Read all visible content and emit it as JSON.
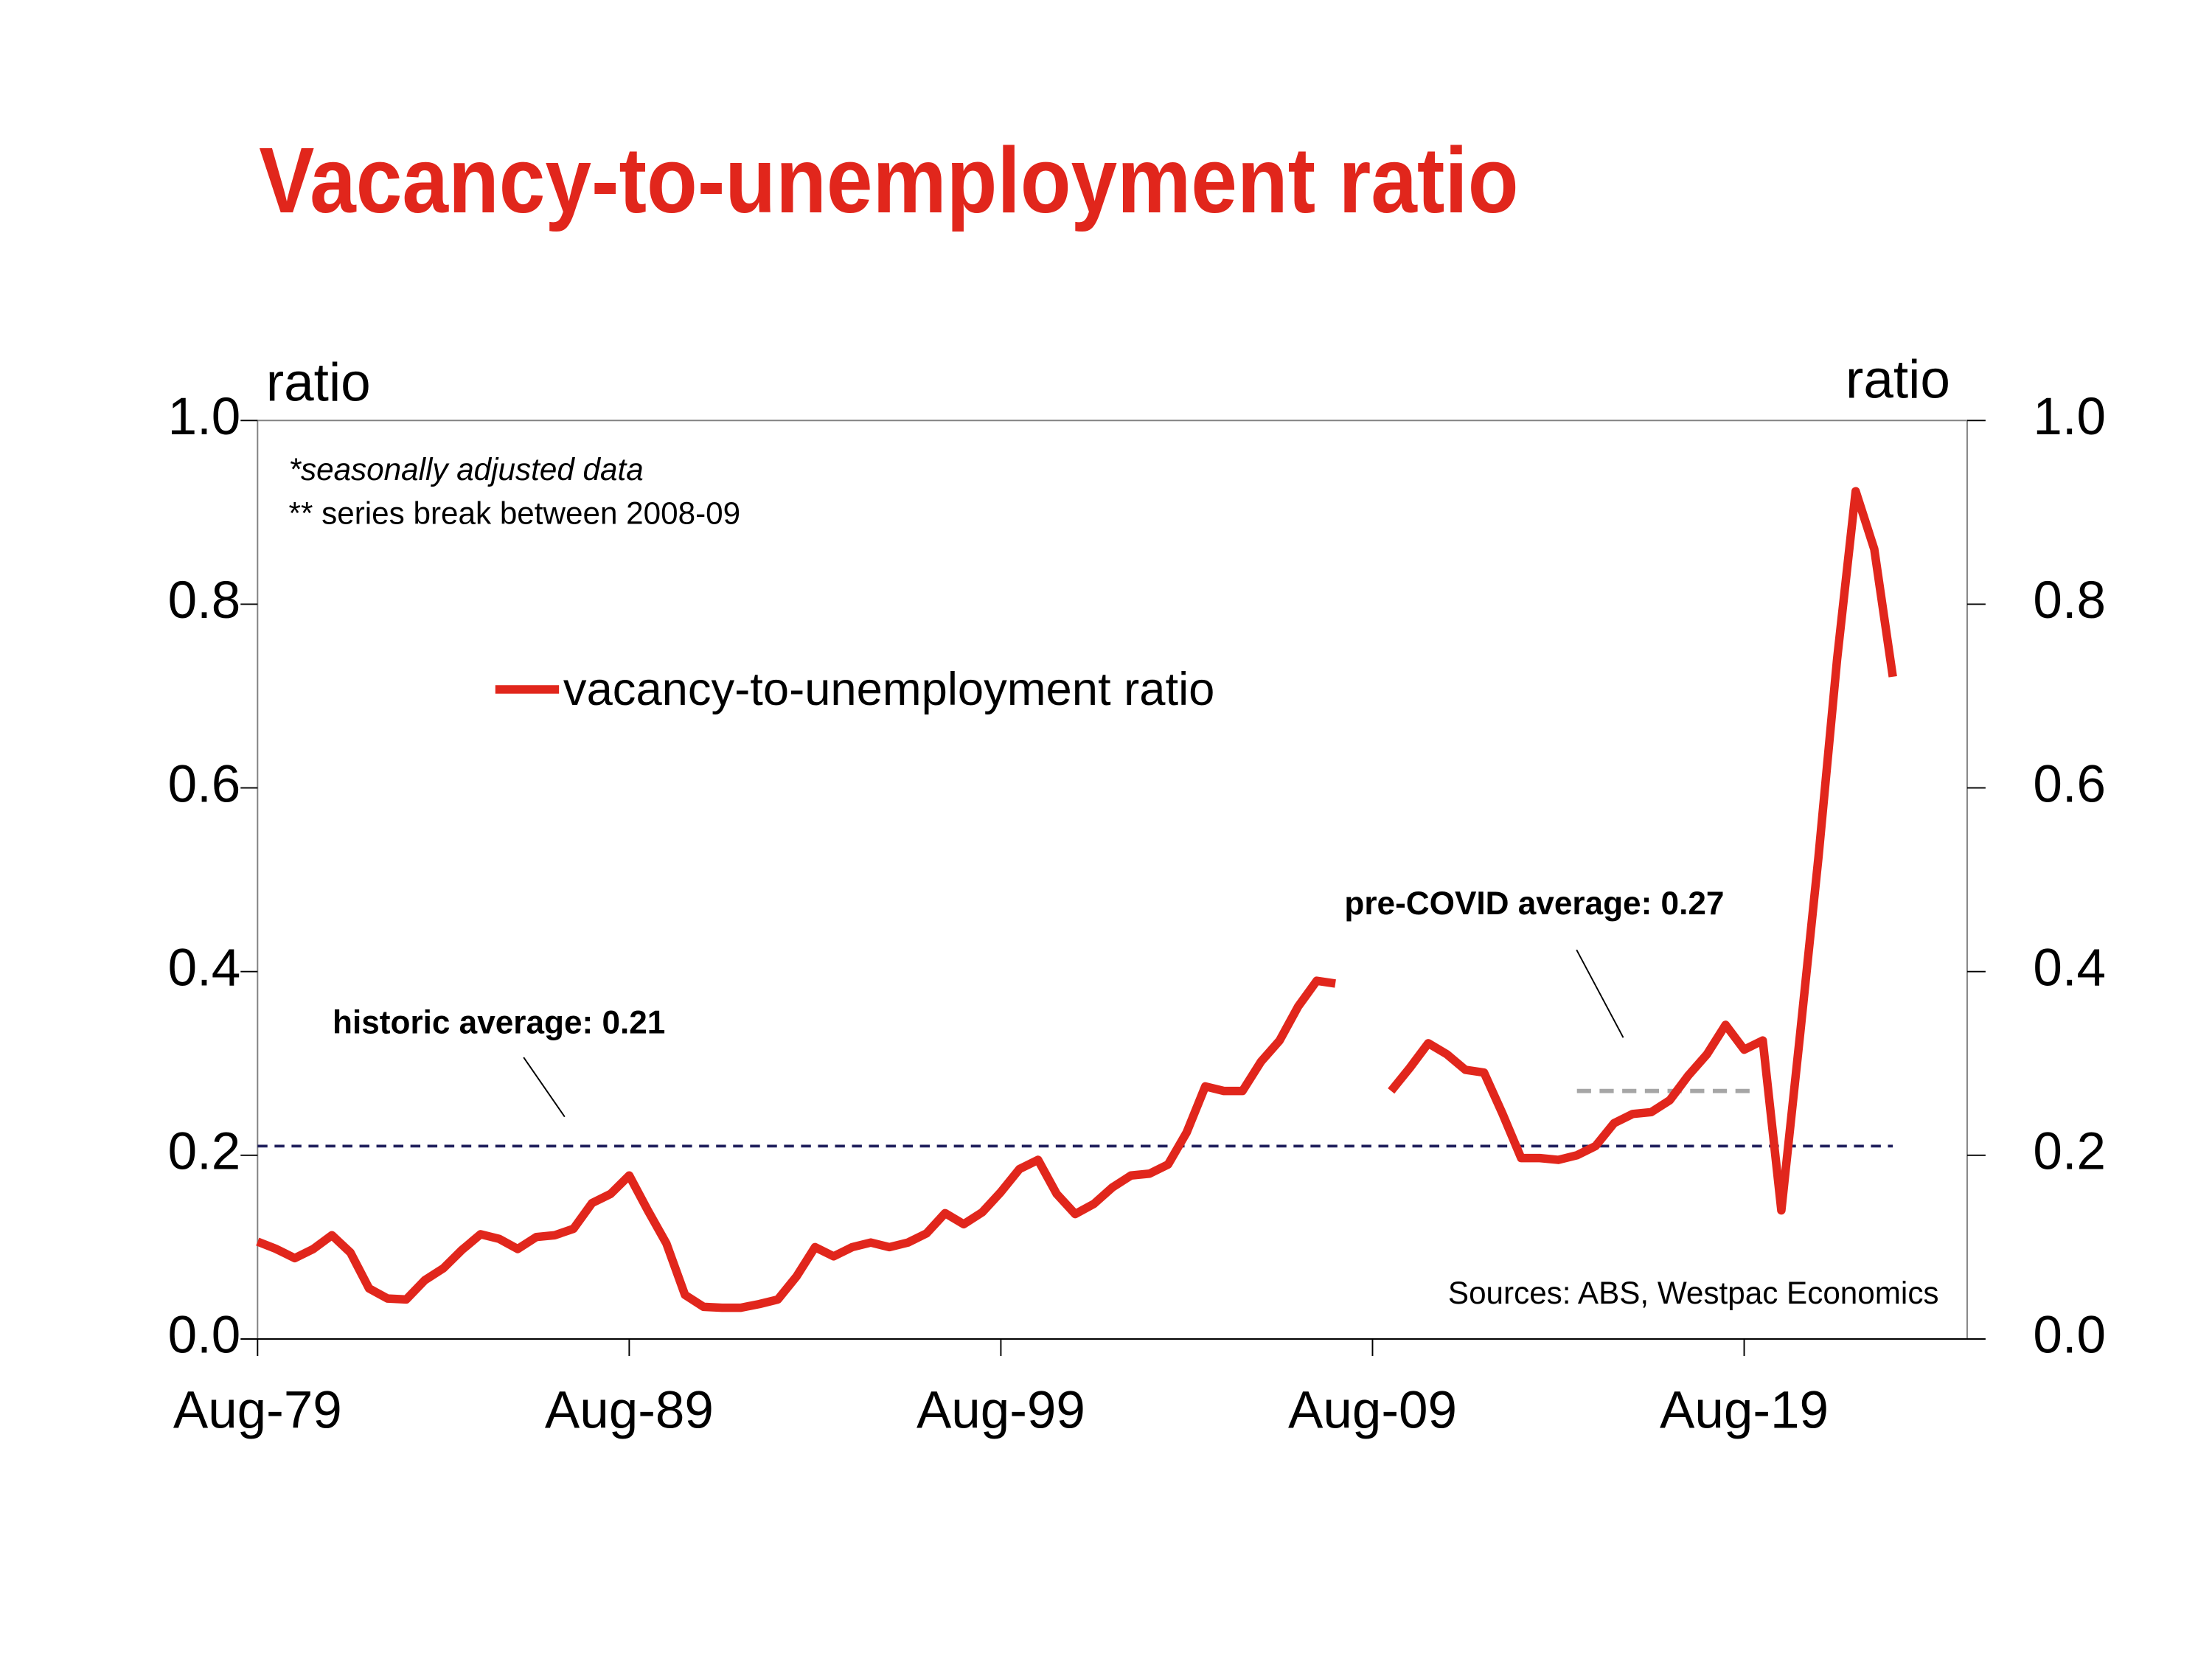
{
  "chart_data": {
    "type": "line",
    "title": "Vacancy-to-unemployment ratio",
    "ylabel": "ratio",
    "y2label": "ratio",
    "notes": [
      "*seasonally adjusted data",
      "** series break between 2008-09"
    ],
    "source": "Sources: ABS, Westpac Economics",
    "x": [
      "1979-08",
      "1980-02",
      "1980-08",
      "1981-02",
      "1981-08",
      "1982-02",
      "1982-08",
      "1983-02",
      "1983-08",
      "1984-02",
      "1984-08",
      "1985-02",
      "1985-08",
      "1986-02",
      "1986-08",
      "1987-02",
      "1987-08",
      "1988-02",
      "1988-08",
      "1989-02",
      "1989-08",
      "1990-02",
      "1990-08",
      "1991-02",
      "1991-08",
      "1992-02",
      "1992-08",
      "1993-02",
      "1993-08",
      "1994-02",
      "1994-08",
      "1995-02",
      "1995-08",
      "1996-02",
      "1996-08",
      "1997-02",
      "1997-08",
      "1998-02",
      "1998-08",
      "1999-02",
      "1999-08",
      "2000-02",
      "2000-08",
      "2001-02",
      "2001-08",
      "2002-02",
      "2002-08",
      "2003-02",
      "2003-08",
      "2004-02",
      "2004-08",
      "2005-02",
      "2005-08",
      "2006-02",
      "2006-08",
      "2007-02",
      "2007-08",
      "2008-02",
      "2008-08",
      "2009-02",
      "2009-08",
      "2010-02",
      "2010-08",
      "2011-02",
      "2011-08",
      "2012-02",
      "2012-08",
      "2013-02",
      "2013-08",
      "2014-02",
      "2014-08",
      "2015-02",
      "2015-08",
      "2016-02",
      "2016-08",
      "2017-02",
      "2017-08",
      "2018-02",
      "2018-08",
      "2019-02",
      "2019-08",
      "2020-02",
      "2020-08",
      "2021-02",
      "2021-08",
      "2022-02",
      "2022-08",
      "2023-02",
      "2023-08"
    ],
    "series": [
      {
        "name": "vacancy-to-unemployment ratio",
        "color": "#e1261c",
        "values": [
          0.106,
          0.098,
          0.088,
          0.098,
          0.113,
          0.094,
          0.055,
          0.044,
          0.043,
          0.064,
          0.077,
          0.097,
          0.114,
          0.109,
          0.098,
          0.111,
          0.113,
          0.12,
          0.148,
          0.158,
          0.178,
          0.14,
          0.104,
          0.048,
          0.035,
          0.034,
          0.034,
          0.038,
          0.043,
          0.068,
          0.1,
          0.09,
          0.1,
          0.105,
          0.1,
          0.105,
          0.115,
          0.137,
          0.125,
          0.138,
          0.16,
          0.185,
          0.195,
          0.158,
          0.136,
          0.147,
          0.165,
          0.178,
          0.18,
          0.19,
          0.225,
          0.275,
          0.27,
          0.27,
          0.302,
          0.325,
          0.362,
          0.39,
          0.387,
          null,
          null,
          0.27,
          0.295,
          0.322,
          0.31,
          0.293,
          0.29,
          0.245,
          0.197,
          0.197,
          0.195,
          0.2,
          0.21,
          0.235,
          0.245,
          0.247,
          0.26,
          0.287,
          0.31,
          0.342,
          0.315,
          0.325,
          0.14,
          0.33,
          0.525,
          0.74,
          0.923,
          0.86,
          0.721
        ]
      }
    ],
    "annotations": [
      {
        "label": "historic average: 0.21",
        "value": 0.21,
        "x": [
          "1979-08",
          "2023-08"
        ],
        "color": "#1f1f5c"
      },
      {
        "label": "pre-COVID average: 0.27",
        "value": 0.27,
        "x": [
          "2015-02",
          "2019-11"
        ],
        "color": "#a6a6a6"
      }
    ],
    "xlim": [
      "1979-08",
      "2025-08"
    ],
    "xticks": [
      {
        "value": "1979-08",
        "label": "Aug-79"
      },
      {
        "value": "1989-08",
        "label": "Aug-89"
      },
      {
        "value": "1999-08",
        "label": "Aug-99"
      },
      {
        "value": "2009-08",
        "label": "Aug-09"
      },
      {
        "value": "2019-08",
        "label": "Aug-19"
      }
    ],
    "ylim": [
      0,
      1
    ],
    "yticks": [
      {
        "value": 0,
        "label": "0.0"
      },
      {
        "value": 0.2,
        "label": "0.2"
      },
      {
        "value": 0.4,
        "label": "0.4"
      },
      {
        "value": 0.6,
        "label": "0.6"
      },
      {
        "value": 0.8,
        "label": "0.8"
      },
      {
        "value": 1,
        "label": "1.0"
      }
    ],
    "y2lim": [
      0,
      1
    ],
    "y2ticks": [
      {
        "value": 0,
        "label": "0.0"
      },
      {
        "value": 0.2,
        "label": "0.2"
      },
      {
        "value": 0.4,
        "label": "0.4"
      },
      {
        "value": 0.6,
        "label": "0.6"
      },
      {
        "value": 0.8,
        "label": "0.8"
      },
      {
        "value": 1,
        "label": "1.0"
      }
    ],
    "grid": false
  }
}
